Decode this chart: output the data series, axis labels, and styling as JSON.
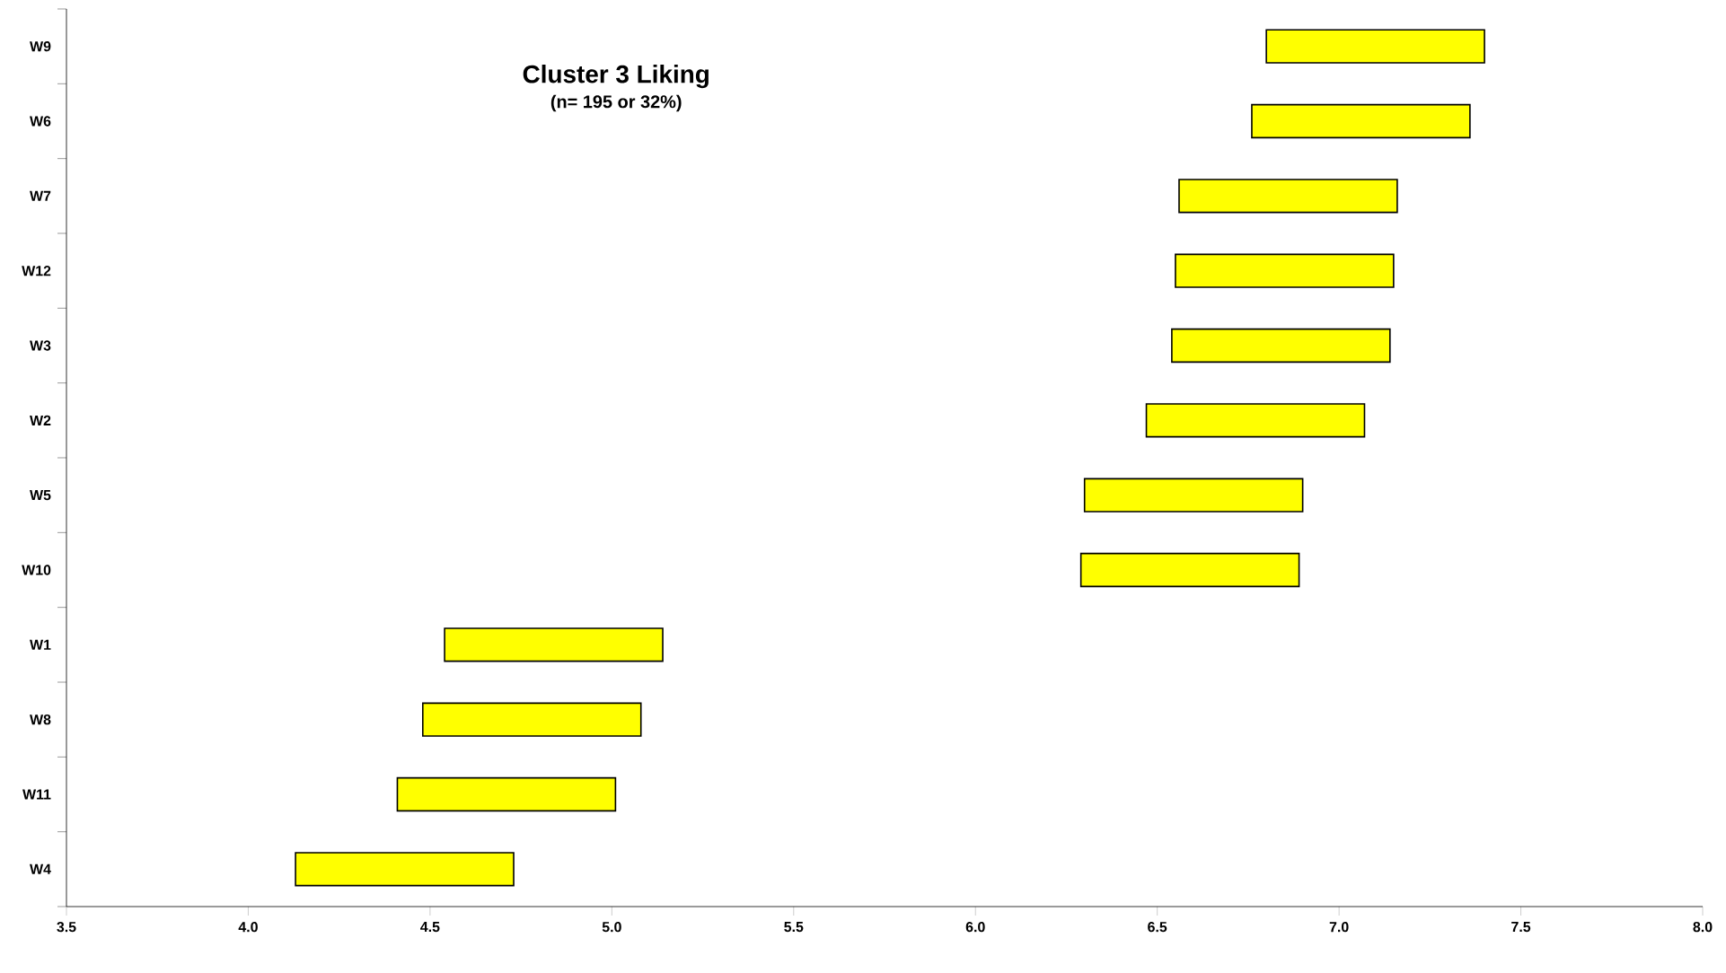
{
  "chart_data": {
    "type": "bar",
    "orientation": "horizontal",
    "title": "Cluster 3 Liking",
    "subtitle": "(n= 195 or 32%)",
    "categories": [
      "W9",
      "W6",
      "W7",
      "W12",
      "W3",
      "W2",
      "W5",
      "W10",
      "W1",
      "W8",
      "W11",
      "W4"
    ],
    "base": [
      6.8,
      6.76,
      6.56,
      6.55,
      6.54,
      6.47,
      6.3,
      6.29,
      4.54,
      4.48,
      4.41,
      4.13
    ],
    "values": [
      0.6,
      0.6,
      0.6,
      0.6,
      0.6,
      0.6,
      0.6,
      0.6,
      0.6,
      0.6,
      0.6,
      0.6
    ],
    "color": "#ffff00",
    "xlim": [
      3.5,
      8.0
    ],
    "xticks": [
      3.5,
      {
        "value": 4.0,
        "label": "4.0"
      },
      4.5,
      {
        "value": 5.0,
        "label": "5.0"
      },
      5.5,
      {
        "value": 6.0,
        "label": "6.0"
      },
      6.5,
      {
        "value": 7.0,
        "label": "7.0"
      },
      7.5,
      {
        "value": 8.0,
        "label": "8.0"
      }
    ]
  }
}
